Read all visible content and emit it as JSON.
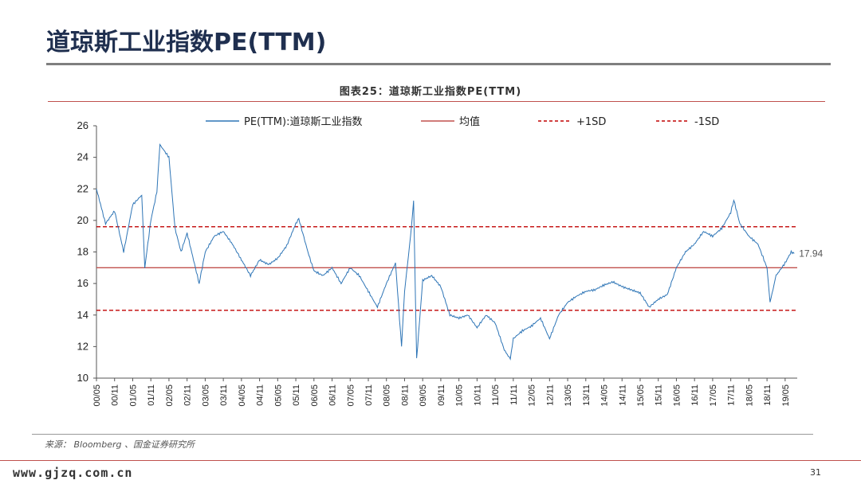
{
  "slide": {
    "title": "道琼斯工业指数PE(TTM)",
    "caption": "图表25：道琼斯工业指数PE(TTM)",
    "source": "来源： Bloomberg 、国金证券研究所",
    "watermark": "www.gjzq.com.cn",
    "page_number": "31"
  },
  "chart_data": {
    "type": "line",
    "title": "",
    "xlabel": "",
    "ylabel": "",
    "ylim": [
      10,
      26
    ],
    "yticks": [
      10,
      12,
      14,
      16,
      18,
      20,
      22,
      24,
      26
    ],
    "xticks": [
      "00/05",
      "00/11",
      "01/05",
      "01/11",
      "02/05",
      "02/11",
      "03/05",
      "03/11",
      "04/05",
      "04/11",
      "05/05",
      "05/11",
      "06/05",
      "06/11",
      "07/05",
      "07/11",
      "08/05",
      "08/11",
      "09/05",
      "09/11",
      "10/05",
      "10/11",
      "11/05",
      "11/11",
      "12/05",
      "12/11",
      "13/05",
      "13/11",
      "14/05",
      "14/11",
      "15/05",
      "15/11",
      "16/05",
      "16/11",
      "17/05",
      "17/11",
      "18/05",
      "18/11",
      "19/05"
    ],
    "legend_position": "top",
    "grid": false,
    "colors": {
      "pe": "#2e75b6",
      "mean": "#c0504d",
      "sd": "#c00000"
    },
    "series": [
      {
        "name": "PE(TTM):道琼斯工业指数",
        "x": [
          "2000-05",
          "2000-08",
          "2000-11",
          "2001-02",
          "2001-05",
          "2001-08",
          "2001-09",
          "2001-11",
          "2002-01",
          "2002-02",
          "2002-05",
          "2002-07",
          "2002-09",
          "2002-11",
          "2003-03",
          "2003-05",
          "2003-08",
          "2003-11",
          "2004-02",
          "2004-05",
          "2004-08",
          "2004-11",
          "2005-02",
          "2005-05",
          "2005-08",
          "2005-11",
          "2005-12",
          "2006-03",
          "2006-05",
          "2006-08",
          "2006-11",
          "2007-02",
          "2007-05",
          "2007-08",
          "2007-11",
          "2008-02",
          "2008-05",
          "2008-08",
          "2008-10",
          "2008-11",
          "2009-01",
          "2009-02",
          "2009-03",
          "2009-05",
          "2009-08",
          "2009-11",
          "2010-02",
          "2010-05",
          "2010-08",
          "2010-11",
          "2011-02",
          "2011-05",
          "2011-08",
          "2011-10",
          "2011-11",
          "2012-02",
          "2012-05",
          "2012-08",
          "2012-11",
          "2013-02",
          "2013-05",
          "2013-08",
          "2013-11",
          "2014-02",
          "2014-05",
          "2014-08",
          "2014-11",
          "2015-02",
          "2015-05",
          "2015-08",
          "2015-11",
          "2016-02",
          "2016-05",
          "2016-08",
          "2016-11",
          "2017-02",
          "2017-05",
          "2017-08",
          "2017-11",
          "2017-12",
          "2018-02",
          "2018-05",
          "2018-08",
          "2018-11",
          "2018-12",
          "2019-02",
          "2019-05",
          "2019-07",
          "2019-08"
        ],
        "values": [
          22.0,
          19.8,
          20.6,
          18.0,
          21.0,
          21.6,
          17.0,
          20.0,
          21.8,
          24.8,
          24.0,
          19.5,
          18.0,
          19.2,
          16.0,
          18.0,
          19.0,
          19.3,
          18.5,
          17.5,
          16.5,
          17.5,
          17.2,
          17.6,
          18.4,
          19.8,
          20.1,
          18.0,
          16.8,
          16.5,
          17.0,
          16.0,
          17.0,
          16.5,
          15.5,
          14.5,
          16.0,
          17.3,
          12.0,
          15.5,
          19.0,
          21.2,
          11.2,
          16.2,
          16.5,
          15.8,
          14.0,
          13.8,
          14.0,
          13.2,
          14.0,
          13.5,
          11.8,
          11.2,
          12.5,
          13.0,
          13.3,
          13.8,
          12.5,
          14.0,
          14.8,
          15.2,
          15.5,
          15.6,
          15.9,
          16.1,
          15.8,
          15.6,
          15.4,
          14.5,
          15.0,
          15.3,
          17.0,
          18.0,
          18.5,
          19.3,
          19.0,
          19.5,
          20.5,
          21.3,
          19.8,
          19.0,
          18.5,
          17.0,
          14.8,
          16.5,
          17.3,
          18.0,
          17.9
        ]
      },
      {
        "name": "均值",
        "value": 17.0
      },
      {
        "name": "+1SD",
        "value": 19.6
      },
      {
        "name": "-1SD",
        "value": 14.3
      }
    ],
    "last_value_label": "17.94"
  }
}
